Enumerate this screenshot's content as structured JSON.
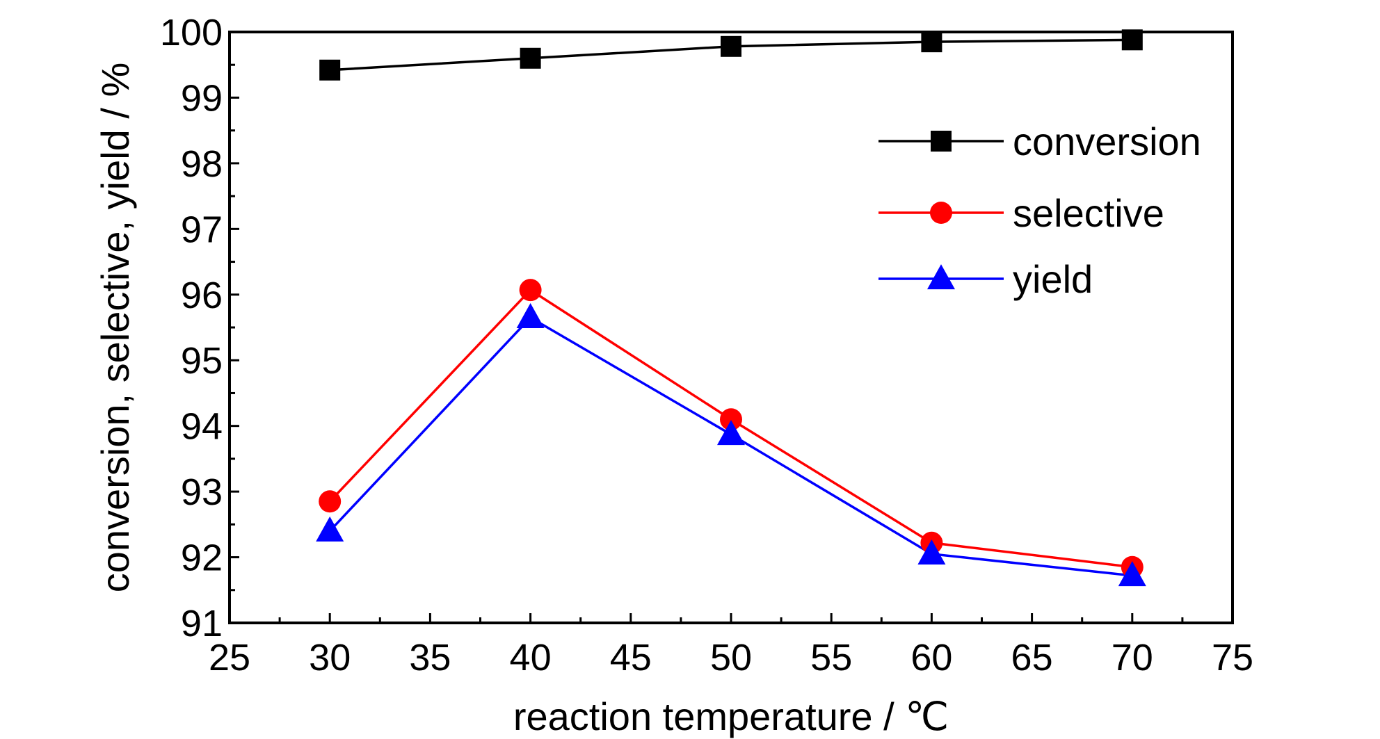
{
  "chart_data": {
    "type": "line",
    "title": "",
    "xlabel": "reaction temperature / ℃",
    "ylabel": "conversion, selective, yield / %",
    "xlim": [
      25,
      75
    ],
    "ylim": [
      91,
      100
    ],
    "x_ticks": [
      25,
      30,
      35,
      40,
      45,
      50,
      55,
      60,
      65,
      70,
      75
    ],
    "y_ticks": [
      91,
      92,
      93,
      94,
      95,
      96,
      97,
      98,
      99,
      100
    ],
    "x_tick_labels": [
      "25",
      "30",
      "35",
      "40",
      "45",
      "50",
      "55",
      "60",
      "65",
      "70",
      "75"
    ],
    "y_tick_labels": [
      "91",
      "92",
      "93",
      "94",
      "95",
      "96",
      "97",
      "98",
      "99",
      "100"
    ],
    "x": [
      30,
      40,
      50,
      60,
      70
    ],
    "grid": false,
    "legend_position": "top-right",
    "series": [
      {
        "name": "conversion",
        "values": [
          99.42,
          99.6,
          99.78,
          99.85,
          99.88
        ],
        "color": "#000000",
        "marker": "square"
      },
      {
        "name": "selective",
        "values": [
          92.85,
          96.07,
          94.1,
          92.22,
          91.85
        ],
        "color": "#ff0000",
        "marker": "circle"
      },
      {
        "name": "yield",
        "values": [
          92.4,
          95.65,
          93.87,
          92.05,
          91.72
        ],
        "color": "#0000ff",
        "marker": "triangle"
      }
    ]
  }
}
